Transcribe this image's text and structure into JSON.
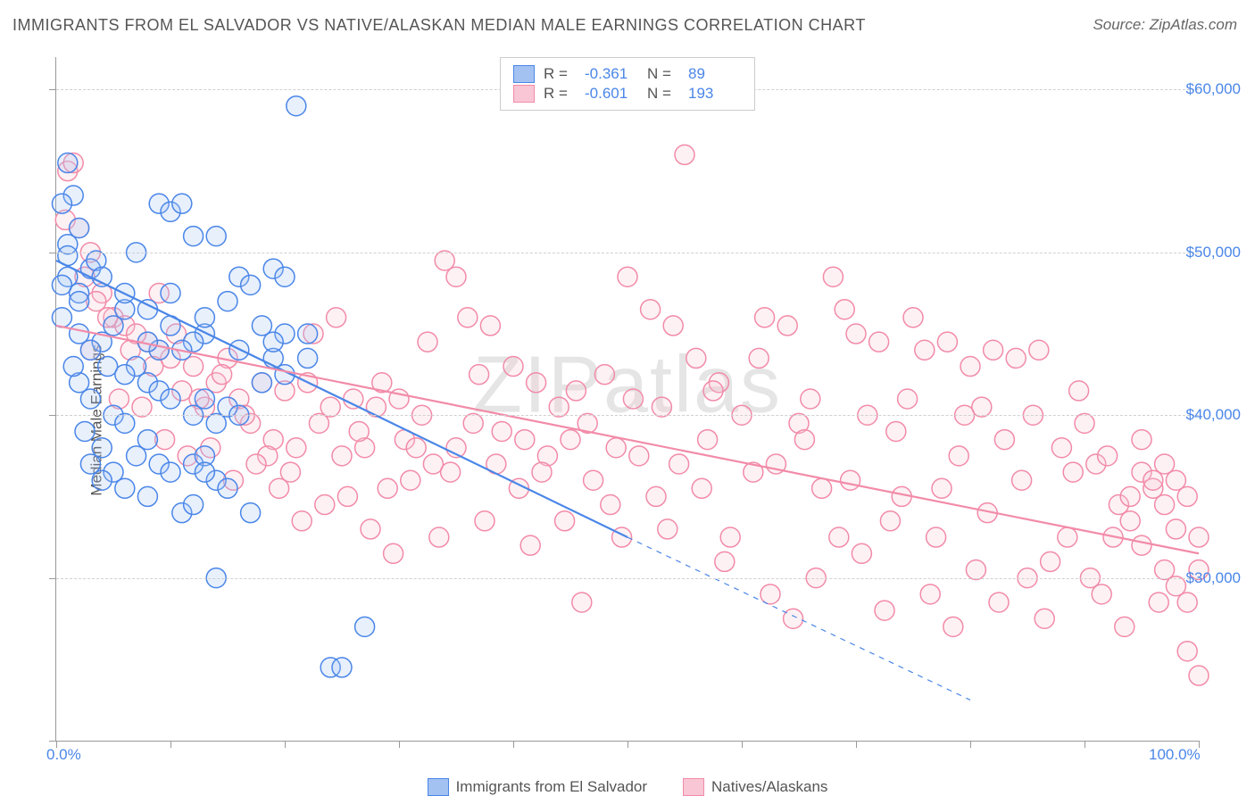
{
  "title": "IMMIGRANTS FROM EL SALVADOR VS NATIVE/ALASKAN MEDIAN MALE EARNINGS CORRELATION CHART",
  "source": "Source: ZipAtlas.com",
  "watermark": "ZIPatlas",
  "y_axis_label": "Median Male Earnings",
  "chart": {
    "type": "scatter",
    "xlim": [
      0,
      100
    ],
    "ylim": [
      20000,
      62000
    ],
    "x_ticks": [
      0,
      10,
      20,
      30,
      40,
      50,
      60,
      70,
      80,
      90,
      100
    ],
    "x_tick_labels": {
      "0": "0.0%",
      "100": "100.0%"
    },
    "y_ticks": [
      20000,
      30000,
      40000,
      50000,
      60000
    ],
    "y_tick_labels": {
      "30000": "$30,000",
      "40000": "$40,000",
      "50000": "$50,000",
      "60000": "$60,000"
    },
    "grid_color": "#d8d8d8",
    "axis_color": "#999999",
    "background": "#ffffff",
    "marker_radius": 11,
    "marker_stroke_width": 1.5,
    "marker_fill_opacity": 0.25,
    "line_width": 2.2
  },
  "series": [
    {
      "id": "blue",
      "label": "Immigrants from El Salvador",
      "color_stroke": "#4a86e8",
      "color_fill": "#a3c2f2",
      "R": "-0.361",
      "N": "89",
      "trend": {
        "x1": 0,
        "y1": 49500,
        "x2": 50,
        "y2": 32500,
        "solid_x2": 50,
        "dash_to_x": 80,
        "dash_to_y": 22500
      },
      "points": [
        [
          1,
          55500
        ],
        [
          1.5,
          53500
        ],
        [
          0.5,
          53000
        ],
        [
          2,
          51500
        ],
        [
          1,
          50500
        ],
        [
          3,
          49000
        ],
        [
          3.5,
          49500
        ],
        [
          1,
          48500
        ],
        [
          0.5,
          48000
        ],
        [
          2,
          47500
        ],
        [
          4,
          48500
        ],
        [
          7,
          50000
        ],
        [
          9,
          53000
        ],
        [
          10,
          52500
        ],
        [
          11,
          53000
        ],
        [
          12,
          51000
        ],
        [
          14,
          51000
        ],
        [
          16,
          48500
        ],
        [
          17,
          48000
        ],
        [
          19,
          49000
        ],
        [
          20,
          48500
        ],
        [
          21,
          59000
        ],
        [
          22,
          45000
        ],
        [
          20,
          45000
        ],
        [
          18,
          45500
        ],
        [
          15,
          47000
        ],
        [
          13,
          45000
        ],
        [
          12,
          44500
        ],
        [
          11,
          44000
        ],
        [
          10,
          45500
        ],
        [
          9,
          44000
        ],
        [
          8,
          44500
        ],
        [
          7,
          43000
        ],
        [
          6,
          46500
        ],
        [
          5,
          45500
        ],
        [
          4,
          44500
        ],
        [
          3,
          44000
        ],
        [
          2,
          45000
        ],
        [
          4.5,
          43000
        ],
        [
          6,
          42500
        ],
        [
          8,
          42000
        ],
        [
          9,
          41500
        ],
        [
          10,
          41000
        ],
        [
          12,
          40000
        ],
        [
          13,
          41000
        ],
        [
          14,
          39500
        ],
        [
          15,
          40500
        ],
        [
          16,
          40000
        ],
        [
          18,
          42000
        ],
        [
          19,
          43500
        ],
        [
          20,
          42500
        ],
        [
          22,
          43500
        ],
        [
          5,
          40000
        ],
        [
          6,
          39500
        ],
        [
          8,
          38500
        ],
        [
          4,
          38000
        ],
        [
          7,
          37500
        ],
        [
          9,
          37000
        ],
        [
          3,
          41000
        ],
        [
          2,
          42000
        ],
        [
          10,
          36500
        ],
        [
          12,
          37000
        ],
        [
          14,
          36000
        ],
        [
          13,
          37500
        ],
        [
          6,
          35500
        ],
        [
          8,
          35000
        ],
        [
          11,
          34000
        ],
        [
          13,
          36500
        ],
        [
          15,
          35500
        ],
        [
          17,
          34000
        ],
        [
          3,
          37000
        ],
        [
          5,
          36500
        ],
        [
          4,
          36000
        ],
        [
          2.5,
          39000
        ],
        [
          1.5,
          43000
        ],
        [
          0.5,
          46000
        ],
        [
          12,
          34500
        ],
        [
          24,
          24500
        ],
        [
          25,
          24500
        ],
        [
          27,
          27000
        ],
        [
          14,
          30000
        ],
        [
          1,
          49800
        ],
        [
          2,
          47000
        ],
        [
          6,
          47500
        ],
        [
          8,
          46500
        ],
        [
          10,
          47500
        ],
        [
          13,
          46000
        ],
        [
          16,
          44000
        ],
        [
          19,
          44500
        ]
      ]
    },
    {
      "id": "pink",
      "label": "Natives/Alaskans",
      "color_stroke": "#f28ba8",
      "color_fill": "#f8c6d4",
      "R": "-0.601",
      "N": "193",
      "trend": {
        "x1": 0,
        "y1": 45500,
        "x2": 100,
        "y2": 31500,
        "solid_x2": 100
      },
      "points": [
        [
          1,
          55000
        ],
        [
          1.5,
          55500
        ],
        [
          0.8,
          52000
        ],
        [
          2,
          51500
        ],
        [
          3,
          50000
        ],
        [
          4,
          47500
        ],
        [
          5,
          46000
        ],
        [
          6,
          45500
        ],
        [
          8,
          44500
        ],
        [
          10,
          43500
        ],
        [
          12,
          43000
        ],
        [
          14,
          42000
        ],
        [
          16,
          41000
        ],
        [
          18,
          42000
        ],
        [
          20,
          41500
        ],
        [
          22,
          42000
        ],
        [
          24,
          40500
        ],
        [
          26,
          41000
        ],
        [
          28,
          40500
        ],
        [
          30,
          41000
        ],
        [
          32,
          40000
        ],
        [
          34,
          49500
        ],
        [
          35,
          48500
        ],
        [
          36,
          46000
        ],
        [
          38,
          45500
        ],
        [
          40,
          43000
        ],
        [
          42,
          42000
        ],
        [
          44,
          40500
        ],
        [
          45,
          38500
        ],
        [
          46,
          28500
        ],
        [
          48,
          42500
        ],
        [
          50,
          48500
        ],
        [
          52,
          46500
        ],
        [
          54,
          45500
        ],
        [
          55,
          56000
        ],
        [
          56,
          43500
        ],
        [
          58,
          42000
        ],
        [
          59,
          32500
        ],
        [
          60,
          40000
        ],
        [
          62,
          46000
        ],
        [
          64,
          45500
        ],
        [
          65,
          39500
        ],
        [
          66,
          41000
        ],
        [
          68,
          48500
        ],
        [
          69,
          46500
        ],
        [
          70,
          45000
        ],
        [
          72,
          44500
        ],
        [
          73,
          33500
        ],
        [
          74,
          35000
        ],
        [
          75,
          46000
        ],
        [
          76,
          44000
        ],
        [
          77,
          32500
        ],
        [
          78,
          44500
        ],
        [
          79,
          37500
        ],
        [
          80,
          43000
        ],
        [
          81,
          40500
        ],
        [
          82,
          44000
        ],
        [
          83,
          38500
        ],
        [
          84,
          43500
        ],
        [
          85,
          30000
        ],
        [
          86,
          44000
        ],
        [
          87,
          31000
        ],
        [
          88,
          38000
        ],
        [
          89,
          36500
        ],
        [
          90,
          39500
        ],
        [
          91,
          37000
        ],
        [
          92,
          37500
        ],
        [
          93,
          34500
        ],
        [
          94,
          35000
        ],
        [
          94,
          33500
        ],
        [
          95,
          38500
        ],
        [
          95,
          36500
        ],
        [
          95,
          32000
        ],
        [
          96,
          35500
        ],
        [
          96,
          36000
        ],
        [
          97,
          34500
        ],
        [
          97,
          37000
        ],
        [
          97,
          30500
        ],
        [
          98,
          36000
        ],
        [
          98,
          33000
        ],
        [
          98,
          29500
        ],
        [
          99,
          35000
        ],
        [
          99,
          28500
        ],
        [
          99,
          25500
        ],
        [
          100,
          32500
        ],
        [
          100,
          30500
        ],
        [
          100,
          24000
        ],
        [
          7,
          45000
        ],
        [
          9,
          44000
        ],
        [
          11,
          41500
        ],
        [
          13,
          40500
        ],
        [
          15,
          43500
        ],
        [
          17,
          39500
        ],
        [
          19,
          38500
        ],
        [
          21,
          38000
        ],
        [
          23,
          39500
        ],
        [
          25,
          37500
        ],
        [
          27,
          38000
        ],
        [
          29,
          35500
        ],
        [
          31,
          36000
        ],
        [
          33,
          37000
        ],
        [
          35,
          38000
        ],
        [
          37,
          42500
        ],
        [
          39,
          39000
        ],
        [
          41,
          38500
        ],
        [
          43,
          37500
        ],
        [
          47,
          36000
        ],
        [
          49,
          38000
        ],
        [
          51,
          37500
        ],
        [
          53,
          40500
        ],
        [
          57,
          38500
        ],
        [
          61,
          36500
        ],
        [
          63,
          37000
        ],
        [
          67,
          35500
        ],
        [
          71,
          40000
        ],
        [
          2.5,
          48500
        ],
        [
          3.5,
          47000
        ],
        [
          4.5,
          46000
        ],
        [
          6.5,
          44000
        ],
        [
          8.5,
          43000
        ],
        [
          10.5,
          45000
        ],
        [
          12.5,
          41000
        ],
        [
          14.5,
          42500
        ],
        [
          16.5,
          40000
        ],
        [
          18.5,
          37500
        ],
        [
          20.5,
          36500
        ],
        [
          22.5,
          45000
        ],
        [
          24.5,
          46000
        ],
        [
          26.5,
          39000
        ],
        [
          28.5,
          42000
        ],
        [
          30.5,
          38500
        ],
        [
          32.5,
          44500
        ],
        [
          34.5,
          36500
        ],
        [
          36.5,
          39500
        ],
        [
          38.5,
          37000
        ],
        [
          40.5,
          35500
        ],
        [
          42.5,
          36500
        ],
        [
          44.5,
          33500
        ],
        [
          48.5,
          34500
        ],
        [
          50.5,
          41000
        ],
        [
          52.5,
          35000
        ],
        [
          56.5,
          35500
        ],
        [
          58.5,
          31000
        ],
        [
          62.5,
          29000
        ],
        [
          64.5,
          27500
        ],
        [
          66.5,
          30000
        ],
        [
          70.5,
          31500
        ],
        [
          72.5,
          28000
        ],
        [
          76.5,
          29000
        ],
        [
          78.5,
          27000
        ],
        [
          80.5,
          30500
        ],
        [
          82.5,
          28500
        ],
        [
          84.5,
          36000
        ],
        [
          86.5,
          27500
        ],
        [
          88.5,
          32500
        ],
        [
          90.5,
          30000
        ],
        [
          92.5,
          32500
        ],
        [
          5.5,
          41000
        ],
        [
          7.5,
          40500
        ],
        [
          9.5,
          38500
        ],
        [
          11.5,
          37500
        ],
        [
          13.5,
          38000
        ],
        [
          15.5,
          36000
        ],
        [
          17.5,
          37000
        ],
        [
          19.5,
          35500
        ],
        [
          21.5,
          33500
        ],
        [
          23.5,
          34500
        ],
        [
          25.5,
          35000
        ],
        [
          27.5,
          33000
        ],
        [
          29.5,
          31500
        ],
        [
          33.5,
          32500
        ],
        [
          37.5,
          33500
        ],
        [
          41.5,
          32000
        ],
        [
          45.5,
          41500
        ],
        [
          49.5,
          32500
        ],
        [
          53.5,
          33000
        ],
        [
          57.5,
          41500
        ],
        [
          61.5,
          43500
        ],
        [
          65.5,
          38500
        ],
        [
          69.5,
          36000
        ],
        [
          73.5,
          39000
        ],
        [
          77.5,
          35500
        ],
        [
          81.5,
          34000
        ],
        [
          85.5,
          40000
        ],
        [
          89.5,
          41500
        ],
        [
          93.5,
          27000
        ],
        [
          96.5,
          28500
        ],
        [
          3,
          44000
        ],
        [
          9,
          47500
        ],
        [
          31.5,
          38000
        ],
        [
          46.5,
          39500
        ],
        [
          54.5,
          37000
        ],
        [
          68.5,
          32500
        ],
        [
          74.5,
          41000
        ],
        [
          79.5,
          40000
        ],
        [
          91.5,
          29000
        ]
      ]
    }
  ],
  "legend_bottom": [
    {
      "label": "Immigrants from El Salvador",
      "series": 0
    },
    {
      "label": "Natives/Alaskans",
      "series": 1
    }
  ]
}
